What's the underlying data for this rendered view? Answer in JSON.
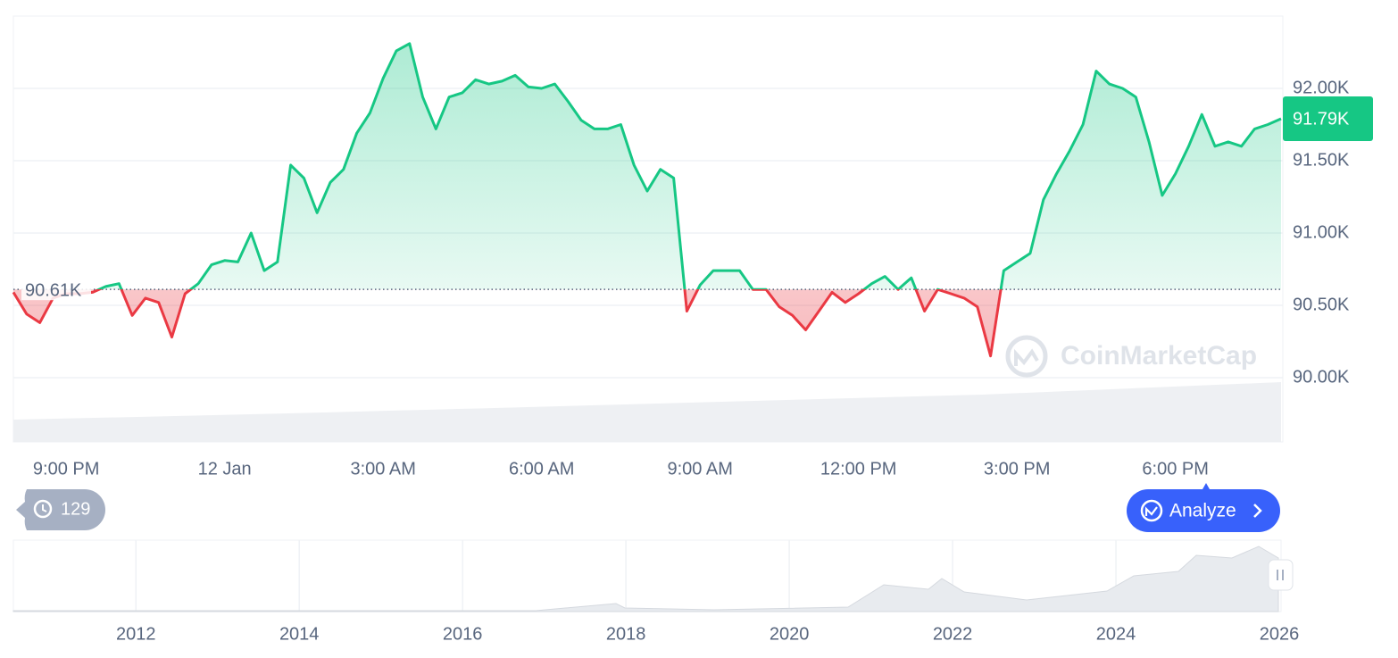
{
  "chart_data": {
    "type": "line",
    "categories": [
      null,
      null,
      null,
      null,
      "9:00 PM",
      null,
      null,
      null,
      null,
      null,
      null,
      null,
      null,
      null,
      null,
      null,
      "12 Jan",
      null,
      null,
      null,
      null,
      null,
      null,
      null,
      null,
      null,
      null,
      null,
      "3:00 AM",
      null,
      null,
      null,
      null,
      null,
      null,
      null,
      null,
      null,
      null,
      null,
      "6:00 AM",
      null,
      null,
      null,
      null,
      null,
      null,
      null,
      null,
      null,
      null,
      null,
      "9:00 AM",
      null,
      null,
      null,
      null,
      null,
      null,
      null,
      null,
      null,
      null,
      null,
      "12:00 PM",
      null,
      null,
      null,
      null,
      null,
      null,
      null,
      null,
      null,
      null,
      null,
      "3:00 PM",
      null,
      null,
      null,
      null,
      null,
      null,
      null,
      null,
      null,
      null,
      null,
      "6:00 PM",
      null,
      null,
      null,
      null,
      null,
      null,
      null,
      null
    ],
    "values": [
      90590,
      90440,
      90380,
      90550,
      90580,
      90580,
      90590,
      90630,
      90650,
      90430,
      90550,
      90520,
      90280,
      90580,
      90650,
      90780,
      90810,
      90800,
      91000,
      90740,
      90800,
      91470,
      91380,
      91140,
      91350,
      91440,
      91690,
      91830,
      92070,
      92260,
      92310,
      91940,
      91720,
      91940,
      91970,
      92060,
      92030,
      92050,
      92090,
      92010,
      92000,
      92030,
      91910,
      91780,
      91720,
      91720,
      91750,
      91470,
      91290,
      91440,
      91380,
      90460,
      90640,
      90740,
      90740,
      90740,
      90610,
      90610,
      90490,
      90430,
      90330,
      90460,
      90590,
      90520,
      90580,
      90650,
      90700,
      90610,
      90690,
      90460,
      90610,
      90580,
      90550,
      90490,
      90150,
      90740,
      90800,
      90860,
      91230,
      91410,
      91570,
      91750,
      92120,
      92030,
      92000,
      91940,
      91630,
      91260,
      91410,
      91600,
      91820,
      91600,
      91630,
      91600,
      91720,
      91750,
      91790
    ],
    "colors": {
      "above": "#16c784",
      "below": "#ea3943"
    },
    "baseline": {
      "value": 90610,
      "label": "90.61K"
    },
    "last_price": {
      "value": 91790,
      "label": "91.79K"
    },
    "ylim": [
      90000,
      92500
    ],
    "yticks": [
      {
        "value": 90000,
        "label": "90.00K"
      },
      {
        "value": 90500,
        "label": "90.50K"
      },
      {
        "value": 91000,
        "label": "91.00K"
      },
      {
        "value": 91500,
        "label": "91.50K"
      },
      {
        "value": 92000,
        "label": "92.00K"
      }
    ],
    "grid": true,
    "watermark": "CoinMarketCap",
    "history_count": 129,
    "analyze_button": "Analyze",
    "navigator": {
      "xlim": [
        2010.5,
        2026
      ],
      "xticks": [
        2012,
        2014,
        2016,
        2018,
        2020,
        2022,
        2024,
        2026
      ]
    }
  }
}
